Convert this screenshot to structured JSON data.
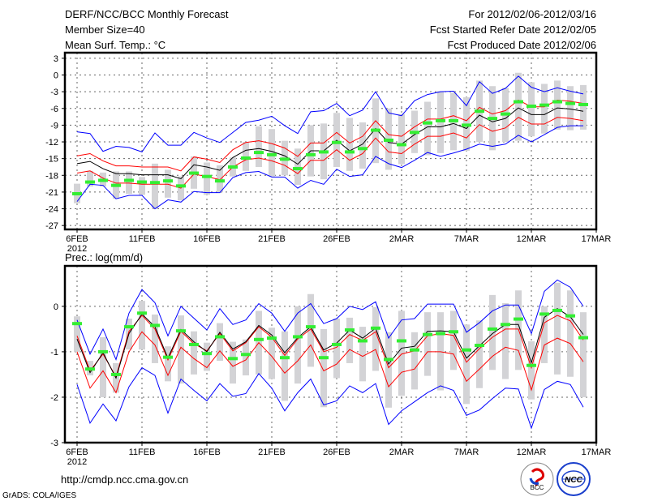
{
  "header": {
    "title": "DERF/NCC/BCC Monthly Forecast",
    "member_size": "Member Size=40",
    "variable": "Mean Surf. Temp.: °C",
    "period": "For 2012/02/06-2012/03/16",
    "started": "Fcst Started Refer Date 2012/02/05",
    "produced": "Fcst Produced Date 2012/02/06"
  },
  "footer": {
    "url": "http://cmdp.ncc.cma.gov.cn",
    "credit": "GrADS: COLA/IGES",
    "logo_bcc": "BCC",
    "logo_ncc": "NCC"
  },
  "colors": {
    "mean": "#000000",
    "spread": "#ff0000",
    "extreme": "#0000ff",
    "obs": "#33ee33",
    "box": "#d3d3d6"
  },
  "chart_data": [
    {
      "type": "line",
      "title": "Mean Surf. Temp.: °C",
      "xlabel": "",
      "ylabel": "",
      "x_start": "2012-02-06",
      "n_days": 40,
      "x_ticks": [
        "6FEB",
        "11FEB",
        "16FEB",
        "21FEB",
        "26FEB",
        "2MAR",
        "7MAR",
        "12MAR",
        "17MAR"
      ],
      "x_year": "2012",
      "y_ticks": [
        "3",
        "0",
        "-3",
        "-6",
        "-9",
        "-12",
        "-15",
        "-18",
        "-21",
        "-24",
        "-27"
      ],
      "ylim": [
        -27.7,
        4
      ],
      "grid": true,
      "series": [
        {
          "name": "ensemble mean",
          "role": "mean",
          "values": [
            -15.9,
            -15.5,
            -16.8,
            -17.7,
            -17.7,
            -17.9,
            -17.9,
            -17.9,
            -18.6,
            -16.1,
            -16.5,
            -17.1,
            -14.8,
            -13.5,
            -13.2,
            -13.7,
            -14.5,
            -16.0,
            -13.6,
            -13.6,
            -11.7,
            -13.6,
            -12.4,
            -9.6,
            -12.1,
            -12.4,
            -10.7,
            -9.3,
            -9.3,
            -8.7,
            -9.6,
            -7.2,
            -8.4,
            -7.8,
            -5.9,
            -7.1,
            -7.1,
            -5.9,
            -6.1,
            -6.5
          ]
        },
        {
          "name": "upper spread",
          "role": "spread",
          "values": [
            -14.5,
            -14.1,
            -15.4,
            -16.3,
            -16.3,
            -16.5,
            -16.5,
            -16.5,
            -17.2,
            -14.7,
            -15.1,
            -15.7,
            -13.4,
            -12.1,
            -11.8,
            -12.3,
            -13.1,
            -14.6,
            -12.2,
            -12.2,
            -10.3,
            -12.2,
            -11.0,
            -8.2,
            -10.7,
            -11.0,
            -9.3,
            -7.9,
            -7.9,
            -7.3,
            -8.2,
            -5.8,
            -7.0,
            -6.4,
            -4.5,
            -5.7,
            -5.7,
            -4.5,
            -4.7,
            -5.1
          ]
        },
        {
          "name": "lower spread",
          "role": "spread",
          "values": [
            -17.6,
            -17.2,
            -18.5,
            -19.4,
            -19.4,
            -19.6,
            -19.6,
            -19.6,
            -20.3,
            -17.8,
            -18.2,
            -18.8,
            -16.5,
            -15.2,
            -14.9,
            -15.4,
            -16.2,
            -17.7,
            -15.3,
            -15.3,
            -13.4,
            -15.3,
            -14.1,
            -11.3,
            -13.8,
            -14.1,
            -12.4,
            -11.0,
            -11.0,
            -10.4,
            -11.3,
            -8.9,
            -10.1,
            -9.5,
            -7.6,
            -8.8,
            -8.8,
            -7.6,
            -7.8,
            -8.2
          ]
        },
        {
          "name": "maximum",
          "role": "extreme",
          "values": [
            -10.2,
            -10.5,
            -13.7,
            -12.8,
            -13.0,
            -13.8,
            -10.4,
            -12.6,
            -12.6,
            -10.3,
            -11.3,
            -12.1,
            -10.3,
            -8.5,
            -8.1,
            -7.4,
            -9.1,
            -10.5,
            -6.6,
            -6.4,
            -5.1,
            -7.3,
            -6.3,
            -3.0,
            -6.8,
            -7.3,
            -4.6,
            -3.5,
            -3.0,
            -2.9,
            -5.5,
            -1.2,
            -3.3,
            -2.4,
            -0.2,
            -2.2,
            -3.0,
            -2.3,
            -2.9,
            -3.4
          ]
        },
        {
          "name": "minimum",
          "role": "extreme",
          "values": [
            -22.7,
            -19.6,
            -19.8,
            -22.2,
            -21.6,
            -21.6,
            -24.0,
            -22.4,
            -22.8,
            -20.9,
            -21.1,
            -21.1,
            -18.4,
            -17.5,
            -17.3,
            -18.3,
            -18.3,
            -20.3,
            -18.9,
            -19.6,
            -16.9,
            -18.2,
            -17.9,
            -14.6,
            -15.9,
            -16.6,
            -15.3,
            -13.9,
            -14.6,
            -14.0,
            -13.3,
            -12.4,
            -12.8,
            -12.4,
            -10.8,
            -12.0,
            -10.7,
            -9.4,
            -9.1,
            -9.1
          ]
        },
        {
          "name": "observation",
          "role": "obs",
          "values": [
            -21.3,
            -19.2,
            -18.9,
            -19.8,
            -18.9,
            -19.2,
            -19.3,
            -19.0,
            -19.9,
            -17.6,
            -18.2,
            -19.0,
            -16.5,
            -14.9,
            -13.9,
            -14.3,
            -15.1,
            -16.8,
            -14.3,
            -13.8,
            -12.1,
            -13.8,
            -13.2,
            -9.9,
            -11.7,
            -12.5,
            -10.3,
            -8.6,
            -8.2,
            -8.2,
            -9.0,
            -6.5,
            -7.8,
            -7.0,
            -4.8,
            -5.6,
            -5.4,
            -4.8,
            -5.1,
            -5.3
          ]
        },
        {
          "name": "box high",
          "role": "box_high",
          "values": [
            -19.5,
            -17.2,
            -17.5,
            -17.3,
            -17.3,
            -18.3,
            -15.9,
            -17.0,
            -18.2,
            -14.6,
            -15.7,
            -16.2,
            -14.8,
            -12.0,
            -9.2,
            -9.7,
            -11.8,
            -13.2,
            -9.0,
            -8.7,
            -6.8,
            -7.7,
            -8.5,
            -4.2,
            -6.0,
            -7.0,
            -6.4,
            -4.8,
            -2.9,
            -3.2,
            -4.0,
            -1.0,
            -2.0,
            -2.3,
            0.4,
            -1.3,
            -1.6,
            -1.0,
            -2.0,
            -1.8
          ]
        },
        {
          "name": "box low",
          "role": "box_low",
          "values": [
            -23.0,
            -20.0,
            -20.0,
            -22.2,
            -21.3,
            -21.5,
            -24.0,
            -22.0,
            -22.5,
            -20.4,
            -21.5,
            -21.0,
            -18.2,
            -17.2,
            -16.5,
            -18.2,
            -18.0,
            -19.7,
            -18.2,
            -18.7,
            -16.5,
            -17.2,
            -16.8,
            -15.8,
            -17.0,
            -16.0,
            -14.0,
            -14.4,
            -14.0,
            -13.5,
            -13.6,
            -12.0,
            -13.5,
            -12.0,
            -11.8,
            -11.0,
            -10.5,
            -9.8,
            -9.9,
            -9.8
          ]
        }
      ]
    },
    {
      "type": "line",
      "title": "Prec.: log(mm/d)",
      "xlabel": "",
      "ylabel": "",
      "x_start": "2012-02-06",
      "n_days": 40,
      "x_ticks": [
        "6FEB",
        "11FEB",
        "16FEB",
        "21FEB",
        "26FEB",
        "2MAR",
        "7MAR",
        "12MAR",
        "17MAR"
      ],
      "x_year": "2012",
      "y_ticks": [
        "0",
        "-1",
        "-2",
        "-3"
      ],
      "ylim": [
        -3,
        0.89
      ],
      "grid": true,
      "series": [
        {
          "name": "ensemble mean",
          "role": "mean",
          "values": [
            -0.72,
            -1.46,
            -1.02,
            -1.58,
            -0.6,
            -0.17,
            -0.45,
            -1.14,
            -0.51,
            -0.78,
            -1.0,
            -0.57,
            -0.94,
            -0.78,
            -0.42,
            -0.63,
            -1.02,
            -0.69,
            -0.45,
            -0.96,
            -0.81,
            -0.52,
            -0.7,
            -0.48,
            -1.27,
            -0.92,
            -0.88,
            -0.55,
            -0.54,
            -0.56,
            -1.14,
            -0.87,
            -0.6,
            -0.4,
            -0.4,
            -1.24,
            -0.24,
            -0.05,
            -0.23,
            -0.62
          ]
        },
        {
          "name": "upper spread",
          "role": "spread",
          "values": [
            -0.65,
            -1.42,
            -1.05,
            -1.55,
            -0.55,
            -0.2,
            -0.5,
            -1.18,
            -0.55,
            -0.82,
            -0.98,
            -0.6,
            -0.98,
            -0.8,
            -0.45,
            -0.68,
            -1.08,
            -0.72,
            -0.5,
            -1.0,
            -0.9,
            -0.62,
            -0.75,
            -0.56,
            -1.35,
            -1.05,
            -0.98,
            -0.65,
            -0.6,
            -0.64,
            -1.23,
            -0.93,
            -0.68,
            -0.5,
            -0.5,
            -1.35,
            -0.36,
            -0.2,
            -0.32,
            -0.74
          ]
        },
        {
          "name": "lower spread",
          "role": "spread",
          "values": [
            -1.0,
            -1.8,
            -1.42,
            -1.9,
            -1.0,
            -0.56,
            -0.85,
            -1.52,
            -0.9,
            -1.15,
            -1.35,
            -0.98,
            -1.32,
            -1.18,
            -0.8,
            -1.1,
            -1.47,
            -1.2,
            -0.85,
            -1.42,
            -1.27,
            -0.95,
            -1.1,
            -0.95,
            -1.77,
            -1.45,
            -1.38,
            -1.0,
            -1.0,
            -1.05,
            -1.65,
            -1.38,
            -1.1,
            -0.9,
            -0.97,
            -1.84,
            -0.85,
            -0.7,
            -0.82,
            -1.22
          ]
        },
        {
          "name": "maximum",
          "role": "extreme",
          "values": [
            -0.3,
            -1.05,
            -0.5,
            -1.17,
            -0.15,
            0.37,
            0.08,
            -0.65,
            0.0,
            -0.26,
            -0.52,
            -0.05,
            -0.4,
            -0.3,
            0.06,
            -0.15,
            -0.55,
            -0.15,
            0.06,
            -0.38,
            -0.27,
            0.0,
            -0.07,
            0.1,
            -0.7,
            -0.3,
            -0.27,
            0.05,
            0.05,
            0.05,
            -0.57,
            -0.36,
            -0.1,
            0.03,
            0.03,
            -0.6,
            0.33,
            0.58,
            0.42,
            0.0
          ]
        },
        {
          "name": "minimum",
          "role": "extreme",
          "values": [
            -1.72,
            -2.57,
            -2.15,
            -2.52,
            -1.77,
            -1.35,
            -1.52,
            -2.35,
            -1.6,
            -1.85,
            -2.08,
            -1.7,
            -1.98,
            -1.92,
            -1.48,
            -1.8,
            -2.3,
            -1.9,
            -1.6,
            -2.17,
            -2.08,
            -1.75,
            -1.9,
            -1.7,
            -2.6,
            -2.3,
            -2.1,
            -1.9,
            -1.75,
            -1.85,
            -2.4,
            -2.28,
            -2.03,
            -1.8,
            -1.82,
            -2.68,
            -1.83,
            -1.65,
            -1.72,
            -2.22
          ]
        },
        {
          "name": "observation",
          "role": "obs",
          "values": [
            -0.38,
            -1.38,
            -1.0,
            -1.5,
            -0.45,
            -0.15,
            -0.42,
            -1.12,
            -0.54,
            -0.84,
            -1.04,
            -0.67,
            -1.15,
            -1.06,
            -0.73,
            -0.7,
            -1.13,
            -0.67,
            -0.45,
            -1.13,
            -0.84,
            -0.52,
            -0.76,
            -0.48,
            -1.17,
            -0.76,
            -0.96,
            -0.62,
            -0.6,
            -0.56,
            -0.96,
            -0.86,
            -0.5,
            -0.4,
            -0.28,
            -1.3,
            -0.17,
            -0.09,
            -0.21,
            -0.69
          ]
        },
        {
          "name": "box high",
          "role": "box_high",
          "values": [
            -0.22,
            -1.2,
            -0.68,
            -1.25,
            -0.27,
            0.12,
            -0.18,
            -0.88,
            -0.2,
            -0.55,
            -0.8,
            -0.37,
            -0.78,
            -0.73,
            -0.1,
            -0.47,
            -0.55,
            0.0,
            0.27,
            -0.5,
            -0.27,
            -0.25,
            -0.45,
            -0.02,
            -0.57,
            -0.1,
            -0.57,
            -0.13,
            -0.13,
            -0.1,
            -0.4,
            -0.31,
            0.25,
            0.07,
            0.35,
            -0.77,
            0.0,
            0.52,
            0.35,
            -0.13
          ]
        },
        {
          "name": "box low",
          "role": "box_low",
          "values": [
            -1.0,
            -1.52,
            -2.0,
            -1.9,
            -0.95,
            -0.95,
            -1.25,
            -1.65,
            -1.7,
            -1.5,
            -1.42,
            -1.2,
            -1.7,
            -1.52,
            -1.5,
            -1.6,
            -2.08,
            -1.7,
            -1.33,
            -2.22,
            -1.58,
            -1.25,
            -1.65,
            -1.42,
            -2.23,
            -1.97,
            -1.83,
            -1.53,
            -1.85,
            -1.4,
            -2.15,
            -1.8,
            -1.4,
            -1.6,
            -1.4,
            -2.05,
            -1.25,
            -1.5,
            -1.55,
            -2.0
          ]
        }
      ]
    }
  ]
}
